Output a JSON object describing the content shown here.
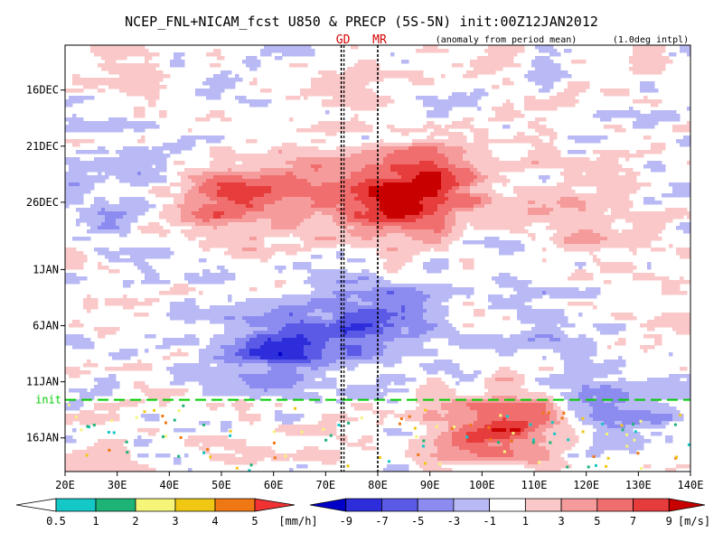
{
  "chart_data": {
    "type": "heatmap",
    "title": "NCEP_FNL+NICAM_fcst U850 & PRECP (5S-5N) init:00Z12JAN2012",
    "subtitle_left": "(anomaly from period mean)",
    "subtitle_right": "(1.0deg intpl)",
    "x_ticks": [
      "20E",
      "30E",
      "40E",
      "50E",
      "60E",
      "70E",
      "80E",
      "90E",
      "100E",
      "110E",
      "120E",
      "130E",
      "140E"
    ],
    "x_range": [
      20,
      140
    ],
    "y_ticks": [
      "16DEC",
      "21DEC",
      "26DEC",
      "1JAN",
      "6JAN",
      "11JAN",
      "16JAN"
    ],
    "y_range": [
      "12DEC2011",
      "19JAN2012"
    ],
    "init_label": "init",
    "init_date": "12JAN2012",
    "markers": [
      {
        "label": "GD",
        "lon": 73
      },
      {
        "label": "MR",
        "lon": 80
      }
    ],
    "u850_anomaly_features": [
      {
        "lon": 50,
        "date": "26DEC",
        "value": 7
      },
      {
        "lon": 89,
        "date": "24DEC",
        "value": 8
      },
      {
        "lon": 82,
        "date": "27DEC",
        "value": 6
      },
      {
        "lon": 65,
        "date": "24DEC",
        "value": 4
      },
      {
        "lon": 63,
        "date": "8JAN",
        "value": -7
      },
      {
        "lon": 80,
        "date": "5JAN",
        "value": -5
      },
      {
        "lon": 104,
        "date": "15JAN",
        "value": 8
      },
      {
        "lon": 125,
        "date": "14JAN",
        "value": -4
      },
      {
        "lon": 32,
        "date": "26DEC",
        "value": -3
      },
      {
        "lon": 112,
        "date": "6JAN",
        "value": -2
      },
      {
        "lon": 120,
        "date": "28DEC",
        "value": 3
      }
    ],
    "legends": {
      "precip": {
        "unit": "[mm/h]",
        "labels": [
          "0.5",
          "1",
          "2",
          "3",
          "4",
          "5"
        ],
        "colors": [
          "#ffffff",
          "#14c8c8",
          "#1eb478",
          "#f5f57a",
          "#f0c814",
          "#f07814",
          "#f03232"
        ]
      },
      "u850": {
        "unit": "[m/s]",
        "labels": [
          "-9",
          "-7",
          "-5",
          "-3",
          "-1",
          "1",
          "3",
          "5",
          "7",
          "9"
        ],
        "colors": [
          "#0000c8",
          "#2d2ddc",
          "#5a5ae6",
          "#8c8cf0",
          "#b9b9f5",
          "#ffffff",
          "#fac8c8",
          "#f59b9b",
          "#f06e6e",
          "#e63c3c",
          "#c80000"
        ]
      }
    }
  }
}
